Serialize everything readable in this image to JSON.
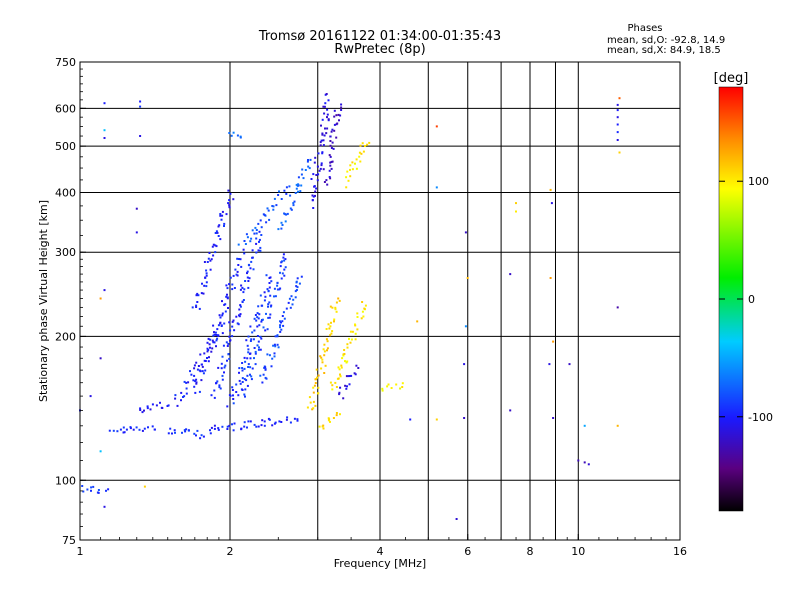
{
  "header": {
    "title": "Tromsø 20161122 01:34:00-01:35:43",
    "subtitle": "RwPretec (8p)"
  },
  "phases": {
    "heading": "Phases",
    "line_o": "mean, sd,O: -92.8, 14.9",
    "line_x": "mean, sd,X:  84.9, 18.5"
  },
  "colorbar": {
    "unit": "[deg]",
    "range": [
      -180,
      180
    ],
    "ticks": [
      {
        "value": 100,
        "label": "100"
      },
      {
        "value": 0,
        "label": "0"
      },
      {
        "value": -100,
        "label": "-100"
      }
    ]
  },
  "chart_data": {
    "type": "scatter",
    "xlabel": "Frequency [MHz]",
    "ylabel": "Stationary phase Virtual Height [km]",
    "xscale": "log",
    "yscale": "log",
    "xlim": [
      1,
      16
    ],
    "ylim": [
      75,
      750
    ],
    "grid": true,
    "x_ticks": [
      1,
      2,
      4,
      6,
      8,
      10,
      16
    ],
    "x_ticklabels": [
      "1",
      "2",
      "4",
      "6",
      "8",
      "10",
      "16"
    ],
    "x_gridlines": [
      2,
      3,
      4,
      5,
      6,
      7,
      8,
      9,
      10
    ],
    "y_ticks": [
      75,
      100,
      200,
      300,
      400,
      500,
      600,
      750
    ],
    "y_ticklabels": [
      "75",
      "100",
      "200",
      "300",
      "400",
      "500",
      "600",
      "750"
    ],
    "y_gridlines": [
      100,
      200,
      300,
      400,
      500,
      600
    ],
    "point_color_variable": "phase [deg]",
    "point_traces": [
      {
        "x": [
          1.0,
          1.12
        ],
        "y": [
          97,
          95
        ],
        "phase": -90
      },
      {
        "x": [
          1.15,
          1.4
        ],
        "y": [
          127,
          129
        ],
        "phase": -95
      },
      {
        "x": [
          1.3,
          1.5
        ],
        "y": [
          142,
          145
        ],
        "phase": -105
      },
      {
        "x": [
          1.5,
          1.8
        ],
        "y": [
          127,
          125
        ],
        "phase": -95
      },
      {
        "x": [
          1.8,
          2.7
        ],
        "y": [
          128,
          135
        ],
        "phase": -98
      },
      {
        "x": [
          1.55,
          1.95
        ],
        "y": [
          145,
          215
        ],
        "phase": -100
      },
      {
        "x": [
          1.7,
          2.1
        ],
        "y": [
          155,
          300
        ],
        "phase": -100
      },
      {
        "x": [
          1.85,
          2.3
        ],
        "y": [
          150,
          330
        ],
        "phase": -95
      },
      {
        "x": [
          2.0,
          2.4
        ],
        "y": [
          145,
          270
        ],
        "phase": -92
      },
      {
        "x": [
          2.1,
          2.6
        ],
        "y": [
          150,
          300
        ],
        "phase": -88
      },
      {
        "x": [
          2.3,
          2.75
        ],
        "y": [
          160,
          270
        ],
        "phase": -85
      },
      {
        "x": [
          1.7,
          2.0
        ],
        "y": [
          230,
          400
        ],
        "phase": -100
      },
      {
        "x": [
          2.1,
          2.6
        ],
        "y": [
          310,
          410
        ],
        "phase": -80
      },
      {
        "x": [
          2.5,
          2.9
        ],
        "y": [
          340,
          470
        ],
        "phase": -75
      },
      {
        "x": [
          2.0,
          2.1
        ],
        "y": [
          530,
          535
        ],
        "phase": -70
      },
      {
        "x": [
          2.9,
          3.15
        ],
        "y": [
          380,
          640
        ],
        "phase": -110
      },
      {
        "x": [
          3.1,
          3.3
        ],
        "y": [
          420,
          620
        ],
        "phase": -120
      },
      {
        "x": [
          3.4,
          3.75
        ],
        "y": [
          420,
          520
        ],
        "phase": 100
      },
      {
        "x": [
          2.9,
          3.25
        ],
        "y": [
          140,
          240
        ],
        "phase": 110
      },
      {
        "x": [
          3.2,
          3.7
        ],
        "y": [
          155,
          235
        ],
        "phase": 100
      },
      {
        "x": [
          3.3,
          3.55
        ],
        "y": [
          150,
          175
        ],
        "phase": -115
      },
      {
        "x": [
          3.0,
          3.3
        ],
        "y": [
          130,
          140
        ],
        "phase": 110
      },
      {
        "x": [
          4.05,
          4.4
        ],
        "y": [
          155,
          160
        ],
        "phase": 95
      }
    ],
    "points": [
      {
        "x": 1.12,
        "y": 615,
        "phase": -100
      },
      {
        "x": 1.12,
        "y": 540,
        "phase": -40
      },
      {
        "x": 1.12,
        "y": 520,
        "phase": -110
      },
      {
        "x": 1.32,
        "y": 620,
        "phase": -100
      },
      {
        "x": 1.32,
        "y": 605,
        "phase": -90
      },
      {
        "x": 1.32,
        "y": 525,
        "phase": -110
      },
      {
        "x": 1.3,
        "y": 370,
        "phase": -120
      },
      {
        "x": 1.3,
        "y": 330,
        "phase": -110
      },
      {
        "x": 1.1,
        "y": 240,
        "phase": 130
      },
      {
        "x": 1.12,
        "y": 250,
        "phase": -110
      },
      {
        "x": 1.1,
        "y": 180,
        "phase": -120
      },
      {
        "x": 1.05,
        "y": 150,
        "phase": -110
      },
      {
        "x": 1.0,
        "y": 140,
        "phase": -100
      },
      {
        "x": 1.1,
        "y": 115,
        "phase": -40
      },
      {
        "x": 1.35,
        "y": 97,
        "phase": 110
      },
      {
        "x": 1.12,
        "y": 88,
        "phase": -110
      },
      {
        "x": 5.2,
        "y": 550,
        "phase": 160
      },
      {
        "x": 5.2,
        "y": 410,
        "phase": -60
      },
      {
        "x": 5.95,
        "y": 330,
        "phase": -120
      },
      {
        "x": 6.0,
        "y": 265,
        "phase": 120
      },
      {
        "x": 5.95,
        "y": 210,
        "phase": -60
      },
      {
        "x": 5.9,
        "y": 175,
        "phase": -110
      },
      {
        "x": 5.9,
        "y": 135,
        "phase": -120
      },
      {
        "x": 5.7,
        "y": 83,
        "phase": -115
      },
      {
        "x": 5.2,
        "y": 134,
        "phase": 110
      },
      {
        "x": 4.6,
        "y": 134,
        "phase": -100
      },
      {
        "x": 4.75,
        "y": 215,
        "phase": 120
      },
      {
        "x": 7.5,
        "y": 380,
        "phase": 110
      },
      {
        "x": 7.5,
        "y": 365,
        "phase": 100
      },
      {
        "x": 7.3,
        "y": 270,
        "phase": -120
      },
      {
        "x": 7.3,
        "y": 140,
        "phase": -120
      },
      {
        "x": 8.8,
        "y": 405,
        "phase": 120
      },
      {
        "x": 8.85,
        "y": 380,
        "phase": -110
      },
      {
        "x": 8.8,
        "y": 265,
        "phase": 130
      },
      {
        "x": 8.9,
        "y": 195,
        "phase": 130
      },
      {
        "x": 8.75,
        "y": 175,
        "phase": -110
      },
      {
        "x": 8.9,
        "y": 135,
        "phase": -120
      },
      {
        "x": 10.0,
        "y": 110,
        "phase": -125
      },
      {
        "x": 10.3,
        "y": 109,
        "phase": -125
      },
      {
        "x": 10.5,
        "y": 108,
        "phase": -115
      },
      {
        "x": 10.3,
        "y": 130,
        "phase": -50
      },
      {
        "x": 9.6,
        "y": 175,
        "phase": -120
      },
      {
        "x": 12.0,
        "y": 230,
        "phase": -130
      },
      {
        "x": 12.0,
        "y": 130,
        "phase": 120
      },
      {
        "x": 12.1,
        "y": 630,
        "phase": 150
      },
      {
        "x": 12.0,
        "y": 610,
        "phase": -110
      },
      {
        "x": 12.0,
        "y": 595,
        "phase": -100
      },
      {
        "x": 12.0,
        "y": 575,
        "phase": -110
      },
      {
        "x": 12.0,
        "y": 555,
        "phase": -100
      },
      {
        "x": 12.0,
        "y": 535,
        "phase": -95
      },
      {
        "x": 12.0,
        "y": 515,
        "phase": -110
      },
      {
        "x": 12.1,
        "y": 485,
        "phase": 110
      }
    ]
  }
}
